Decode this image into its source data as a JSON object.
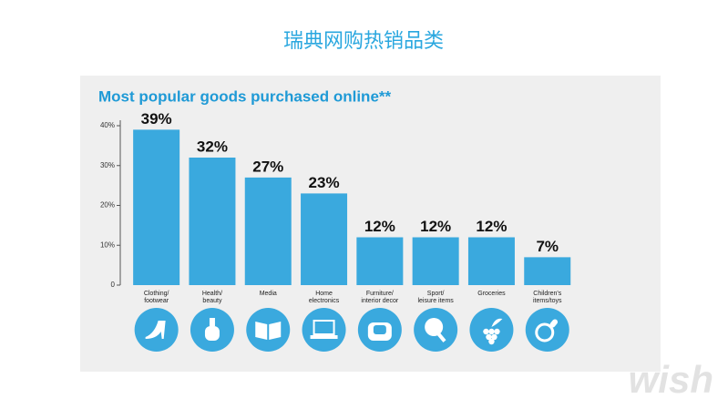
{
  "slide_title": "瑞典网购热销品类",
  "watermark": "wish",
  "chart_data": {
    "type": "bar",
    "title": "Most popular goods purchased online**",
    "categories": [
      "Clothing/\nfootwear",
      "Health/\nbeauty",
      "Media",
      "Home\nelectronics",
      "Furniture/\ninterior decor",
      "Sport/\nleisure items",
      "Groceries",
      "Children's\nitems/toys"
    ],
    "values": [
      39,
      32,
      27,
      23,
      12,
      12,
      12,
      7
    ],
    "value_labels": [
      "39%",
      "32%",
      "27%",
      "23%",
      "12%",
      "12%",
      "12%",
      "7%"
    ],
    "color": "#3aa9de",
    "ylim": [
      0,
      40
    ],
    "yticks": [
      0,
      {
        "value": 10,
        "label": "10%"
      },
      {
        "value": 20,
        "label": "20%"
      },
      {
        "value": 30,
        "label": "30%"
      },
      {
        "value": 40,
        "label": "40%"
      }
    ],
    "grid": false
  }
}
